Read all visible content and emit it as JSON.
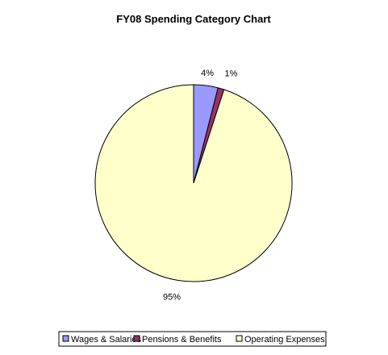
{
  "chart_data": {
    "type": "pie",
    "title": "FY08 Spending Category Chart",
    "slices": [
      {
        "label": "Wages & Salaries",
        "value": 4,
        "value_label": "4%",
        "color": "#9999ff"
      },
      {
        "label": "Pensions & Benefits",
        "value": 1,
        "value_label": "1%",
        "color": "#993366"
      },
      {
        "label": "Operating Expenses",
        "value": 95,
        "value_label": "95%",
        "color": "#ffffcc"
      }
    ],
    "start_angle": "12 o'clock",
    "direction": "clockwise",
    "legend_position": "bottom"
  }
}
